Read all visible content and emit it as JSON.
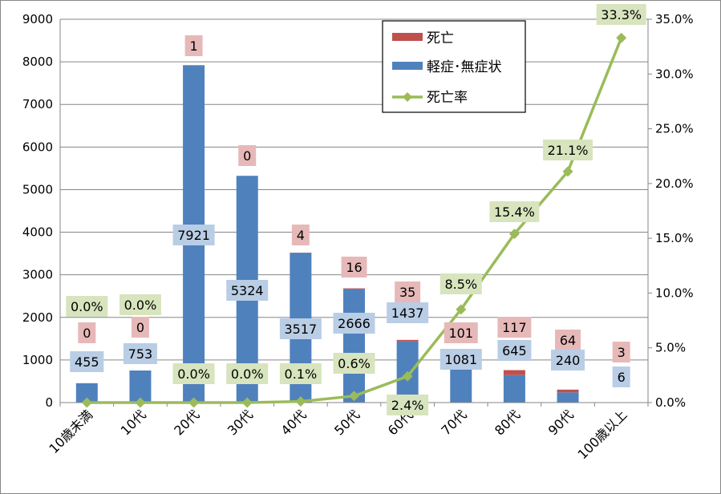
{
  "chart_data": {
    "type": "bar",
    "stacked": true,
    "categories": [
      "10歳未満",
      "10代",
      "20代",
      "30代",
      "40代",
      "50代",
      "60代",
      "70代",
      "80代",
      "90代",
      "100歳以上"
    ],
    "series": [
      {
        "name": "軽症･無症状",
        "type": "bar",
        "axis": "left",
        "color": "#4f81bd",
        "label_bg": "#b9cde5",
        "values": [
          455,
          753,
          7921,
          5324,
          3517,
          2666,
          1437,
          1081,
          645,
          240,
          6
        ],
        "labels": [
          "455",
          "753",
          "7921",
          "5324",
          "3517",
          "2666",
          "1437",
          "1081",
          "645",
          "240",
          "6"
        ]
      },
      {
        "name": "死亡",
        "type": "bar",
        "axis": "left",
        "color": "#c0504d",
        "label_bg": "#e6b9b8",
        "values": [
          0,
          0,
          1,
          0,
          4,
          16,
          35,
          101,
          117,
          64,
          3
        ],
        "labels": [
          "0",
          "0",
          "1",
          "0",
          "4",
          "16",
          "35",
          "101",
          "117",
          "64",
          "3"
        ]
      },
      {
        "name": "死亡率",
        "type": "line",
        "axis": "right",
        "color": "#9bbb59",
        "label_bg": "#d7e4bd",
        "values": [
          0.0,
          0.0,
          0.0,
          0.0,
          0.1,
          0.6,
          2.4,
          8.5,
          15.4,
          21.1,
          33.3
        ],
        "labels": [
          "0.0%",
          "0.0%",
          "0.0%",
          "0.0%",
          "0.1%",
          "0.6%",
          "2.4%",
          "8.5%",
          "15.4%",
          "21.1%",
          "33.3%"
        ]
      }
    ],
    "y_left": {
      "min": 0,
      "max": 9000,
      "step": 1000,
      "ticks": [
        "0",
        "1000",
        "2000",
        "3000",
        "4000",
        "5000",
        "6000",
        "7000",
        "8000",
        "9000"
      ]
    },
    "y_right": {
      "min": 0,
      "max": 35,
      "step": 5,
      "ticks": [
        "0.0%",
        "5.0%",
        "10.0%",
        "15.0%",
        "20.0%",
        "25.0%",
        "30.0%",
        "35.0%"
      ]
    },
    "grid": true,
    "legend": {
      "position": "top-right",
      "entries": [
        "死亡",
        "軽症･無症状",
        "死亡率"
      ]
    }
  }
}
